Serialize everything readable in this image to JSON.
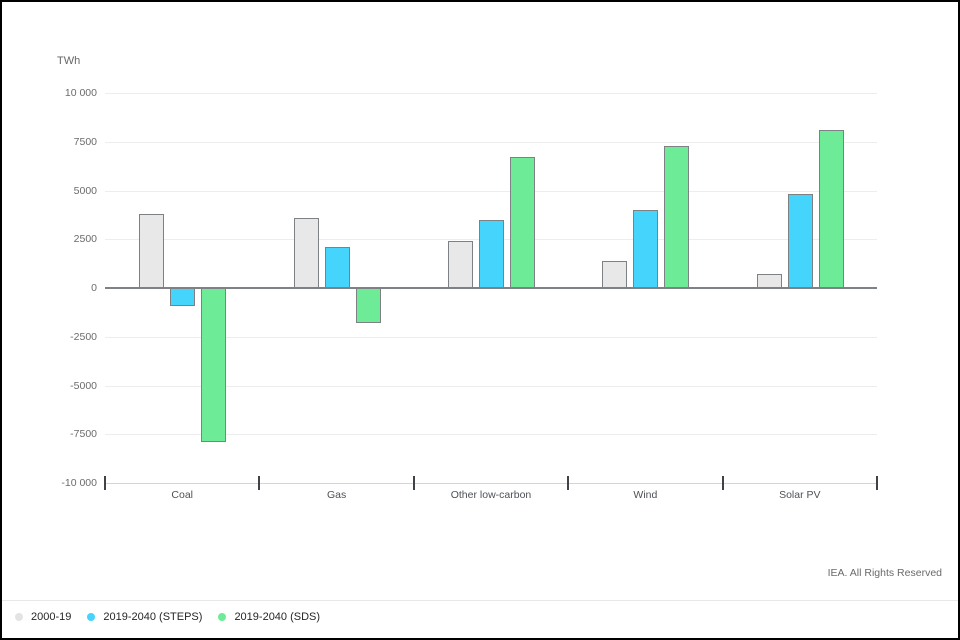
{
  "header": {
    "unit_label": "TWh"
  },
  "footer": {
    "copyright": "IEA. All Rights Reserved"
  },
  "legend": [
    {
      "label": "2000-19",
      "color": "#e3e3e3"
    },
    {
      "label": "2019-2040 (STEPS)",
      "color": "#45d4fc"
    },
    {
      "label": "2019-2040 (SDS)",
      "color": "#6deb97"
    }
  ],
  "chart_data": {
    "type": "bar",
    "title": "",
    "xlabel": "",
    "ylabel": "TWh",
    "categories": [
      "Coal",
      "Gas",
      "Other low-carbon",
      "Wind",
      "Solar PV"
    ],
    "series": [
      {
        "name": "2000-19",
        "color": "#e8e8e8",
        "border_color": "#8a8a8a",
        "values": [
          3800,
          3600,
          2400,
          1400,
          700
        ]
      },
      {
        "name": "2019-2040 (STEPS)",
        "color": "#45d4fc",
        "border_color": "#6f8b96",
        "values": [
          -900,
          2100,
          3500,
          4000,
          4800
        ]
      },
      {
        "name": "2019-2040 (SDS)",
        "color": "#6deb97",
        "border_color": "#6f9a7d",
        "values": [
          -7900,
          -1800,
          6700,
          7300,
          8100
        ]
      }
    ],
    "ylim": [
      -10000,
      10000
    ],
    "ytick_interval": 2500,
    "ytick_labels": [
      "10 000",
      "7500",
      "5000",
      "2500",
      "0",
      "-2500",
      "-5000",
      "-7500",
      "-10 000"
    ],
    "grid": true,
    "zero_line_color": "#7f8285",
    "axis_line_color": "#ccd5e8",
    "legend_position": "bottom-left"
  }
}
